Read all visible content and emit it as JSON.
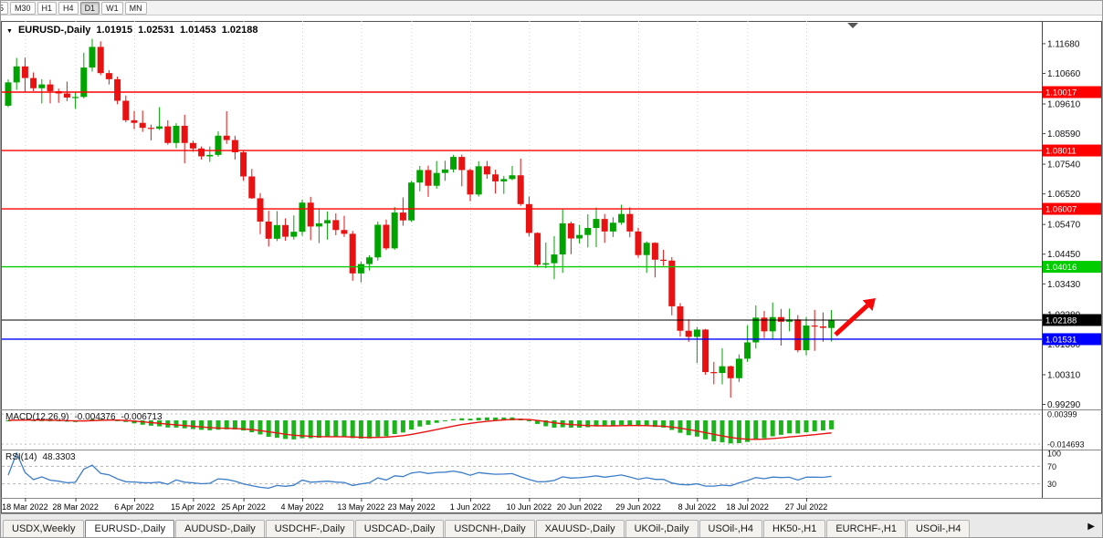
{
  "toolbar": {
    "periods": [
      {
        "label": "5",
        "active": false,
        "clipped": true
      },
      {
        "label": "M30",
        "active": false
      },
      {
        "label": "H1",
        "active": false
      },
      {
        "label": "H4",
        "active": false
      },
      {
        "label": "D1",
        "active": true
      },
      {
        "label": "W1",
        "active": false
      },
      {
        "label": "MN",
        "active": false
      }
    ]
  },
  "chart": {
    "title": {
      "symbol": "EURUSD-,Daily",
      "open": "1.01915",
      "high": "1.02531",
      "low": "1.01453",
      "close": "1.02188"
    },
    "colors": {
      "bull": "#00a300",
      "bear": "#e81212",
      "grid": "#cfcfcf",
      "axis_text": "#111111",
      "border": "#555555"
    }
  },
  "chart_data": {
    "type": "candlestick",
    "symbol": "EURUSD",
    "timeframe": "Daily",
    "y_axis_labels": [
      "1.11680",
      "1.10660",
      "1.09610",
      "1.08590",
      "1.07540",
      "1.06520",
      "1.05470",
      "1.04450",
      "1.03430",
      "1.02380",
      "1.01360",
      "1.00310",
      "0.99290"
    ],
    "x_labels": [
      {
        "text": "18 Mar 2022",
        "index": 2
      },
      {
        "text": "28 Mar 2022",
        "index": 8
      },
      {
        "text": "6 Apr 2022",
        "index": 15
      },
      {
        "text": "15 Apr 2022",
        "index": 22
      },
      {
        "text": "25 Apr 2022",
        "index": 28
      },
      {
        "text": "4 May 2022",
        "index": 35
      },
      {
        "text": "13 May 2022",
        "index": 42
      },
      {
        "text": "23 May 2022",
        "index": 48
      },
      {
        "text": "1 Jun 2022",
        "index": 55
      },
      {
        "text": "10 Jun 2022",
        "index": 62
      },
      {
        "text": "20 Jun 2022",
        "index": 68
      },
      {
        "text": "29 Jun 2022",
        "index": 75
      },
      {
        "text": "8 Jul 2022",
        "index": 82
      },
      {
        "text": "18 Jul 2022",
        "index": 88
      },
      {
        "text": "27 Jul 2022",
        "index": 95
      }
    ],
    "h_lines": [
      {
        "price": 1.10017,
        "label": "1.10017",
        "color": "#ff0000",
        "type": "resistance"
      },
      {
        "price": 1.08011,
        "label": "1.08011",
        "color": "#ff0000",
        "type": "resistance"
      },
      {
        "price": 1.06007,
        "label": "1.06007",
        "color": "#ff0000",
        "type": "resistance"
      },
      {
        "price": 1.04016,
        "label": "1.04016",
        "color": "#00cc00",
        "type": "level"
      },
      {
        "price": 1.02188,
        "label": "1.02188",
        "color": "#000000",
        "type": "current-price"
      },
      {
        "price": 1.01531,
        "label": "1.01531",
        "color": "#0000ff",
        "type": "support"
      }
    ],
    "arrow_annotation": {
      "color": "#f50808",
      "direction": "up-right"
    },
    "indicators": {
      "macd": {
        "label": "MACD(12,26,9)",
        "value_main": "-0.004376",
        "value_signal": "-0.006713",
        "axis_labels": [
          {
            "text": "0.00399",
            "value": 0.00399
          },
          {
            "text": "-0.014693",
            "value": -0.014693
          }
        ],
        "histogram_color": "#1db31d",
        "signal_color": "#e81212"
      },
      "rsi": {
        "label": "RSI(14)",
        "value": "48.3303",
        "axis_labels": [
          {
            "text": "100",
            "value": 100
          },
          {
            "text": "70",
            "value": 70
          },
          {
            "text": "30",
            "value": 30
          }
        ],
        "levels": [
          70,
          30
        ],
        "line_color": "#3b7dc8"
      }
    },
    "candles": [
      [
        1.0955,
        1.1045,
        1.095,
        1.1035
      ],
      [
        1.1035,
        1.1119,
        1.1009,
        1.109
      ],
      [
        1.109,
        1.112,
        1.1003,
        1.105
      ],
      [
        1.105,
        1.1069,
        1.1005,
        1.1015
      ],
      [
        1.1015,
        1.1046,
        1.0963,
        1.1028
      ],
      [
        1.1028,
        1.1044,
        1.0963,
        1.1005
      ],
      [
        1.1005,
        1.1014,
        1.0965,
        1.0997
      ],
      [
        1.0997,
        1.1038,
        1.0971,
        1.0983
      ],
      [
        1.0983,
        1.1,
        1.0944,
        1.0985
      ],
      [
        1.0985,
        1.1137,
        1.098,
        1.1086
      ],
      [
        1.1086,
        1.1185,
        1.1072,
        1.1157
      ],
      [
        1.1157,
        1.1176,
        1.106,
        1.1067
      ],
      [
        1.1067,
        1.1077,
        1.1028,
        1.1046
      ],
      [
        1.1046,
        1.1055,
        1.096,
        1.0972
      ],
      [
        1.0972,
        1.099,
        1.0898,
        1.0905
      ],
      [
        1.0905,
        1.0937,
        1.0874,
        1.0896
      ],
      [
        1.0896,
        1.0938,
        1.0865,
        1.0879
      ],
      [
        1.0879,
        1.089,
        1.0836,
        1.0876
      ],
      [
        1.0876,
        1.095,
        1.0872,
        1.0884
      ],
      [
        1.0884,
        1.0905,
        1.0821,
        1.0827
      ],
      [
        1.0827,
        1.0895,
        1.0809,
        1.0886
      ],
      [
        1.0886,
        1.0924,
        1.0757,
        1.0827
      ],
      [
        1.0827,
        1.0835,
        1.0797,
        1.0808
      ],
      [
        1.0808,
        1.0815,
        1.077,
        1.0781
      ],
      [
        1.0781,
        1.0815,
        1.0762,
        1.0786
      ],
      [
        1.0786,
        1.0867,
        1.078,
        1.0852
      ],
      [
        1.0852,
        1.0936,
        1.0824,
        1.0837
      ],
      [
        1.0837,
        1.0852,
        1.077,
        1.0795
      ],
      [
        1.0795,
        1.08,
        1.0697,
        1.0712
      ],
      [
        1.0712,
        1.0738,
        1.0635,
        1.0637
      ],
      [
        1.0637,
        1.0655,
        1.0514,
        1.0557
      ],
      [
        1.0557,
        1.0594,
        1.0471,
        1.0498
      ],
      [
        1.0498,
        1.0593,
        1.049,
        1.0545
      ],
      [
        1.0545,
        1.0568,
        1.0491,
        1.0505
      ],
      [
        1.0505,
        1.0578,
        1.0495,
        1.0522
      ],
      [
        1.0522,
        1.0632,
        1.0508,
        1.0622
      ],
      [
        1.0622,
        1.0642,
        1.0493,
        1.054
      ],
      [
        1.054,
        1.0599,
        1.0483,
        1.0551
      ],
      [
        1.0551,
        1.0592,
        1.0495,
        1.0562
      ],
      [
        1.0562,
        1.0585,
        1.051,
        1.0528
      ],
      [
        1.0528,
        1.0577,
        1.0504,
        1.0515
      ],
      [
        1.0515,
        1.0525,
        1.0354,
        1.0379
      ],
      [
        1.0379,
        1.042,
        1.0348,
        1.0411
      ],
      [
        1.0411,
        1.0441,
        1.0389,
        1.0434
      ],
      [
        1.0434,
        1.0557,
        1.0423,
        1.0546
      ],
      [
        1.0546,
        1.0564,
        1.0459,
        1.0465
      ],
      [
        1.0465,
        1.0607,
        1.046,
        1.0588
      ],
      [
        1.0588,
        1.064,
        1.0543,
        1.0561
      ],
      [
        1.0561,
        1.0697,
        1.0556,
        1.0691
      ],
      [
        1.0691,
        1.0748,
        1.0661,
        1.0734
      ],
      [
        1.0734,
        1.0749,
        1.0642,
        1.068
      ],
      [
        1.068,
        1.0765,
        1.067,
        1.0724
      ],
      [
        1.0724,
        1.0766,
        1.0697,
        1.0736
      ],
      [
        1.0736,
        1.0786,
        1.0726,
        1.0779
      ],
      [
        1.0779,
        1.0787,
        1.0678,
        1.0734
      ],
      [
        1.0734,
        1.0739,
        1.0627,
        1.065
      ],
      [
        1.065,
        1.0764,
        1.0643,
        1.0747
      ],
      [
        1.0747,
        1.0765,
        1.0704,
        1.0719
      ],
      [
        1.0719,
        1.0735,
        1.0653,
        1.0695
      ],
      [
        1.0695,
        1.0714,
        1.0652,
        1.0703
      ],
      [
        1.0703,
        1.0748,
        1.0699,
        1.0716
      ],
      [
        1.0716,
        1.0773,
        1.0611,
        1.0617
      ],
      [
        1.0617,
        1.0643,
        1.0506,
        1.0518
      ],
      [
        1.0518,
        1.052,
        1.0399,
        1.0409
      ],
      [
        1.0409,
        1.0485,
        1.0397,
        1.0414
      ],
      [
        1.0414,
        1.0507,
        1.0359,
        1.0444
      ],
      [
        1.0444,
        1.0601,
        1.0381,
        1.0551
      ],
      [
        1.0551,
        1.0557,
        1.0445,
        1.0499
      ],
      [
        1.0499,
        1.0546,
        1.0482,
        1.0511
      ],
      [
        1.0511,
        1.0582,
        1.0468,
        1.0535
      ],
      [
        1.0535,
        1.0605,
        1.0469,
        1.0566
      ],
      [
        1.0566,
        1.0583,
        1.0484,
        1.0523
      ],
      [
        1.0523,
        1.0572,
        1.0504,
        1.0553
      ],
      [
        1.0553,
        1.0615,
        1.0546,
        1.0583
      ],
      [
        1.0583,
        1.0606,
        1.0503,
        1.0523
      ],
      [
        1.0523,
        1.0536,
        1.0433,
        1.0442
      ],
      [
        1.0442,
        1.0489,
        1.0381,
        1.0484
      ],
      [
        1.0484,
        1.0486,
        1.0365,
        1.0426
      ],
      [
        1.0426,
        1.046,
        1.0405,
        1.0423
      ],
      [
        1.0423,
        1.0435,
        1.0235,
        1.0266
      ],
      [
        1.0266,
        1.0277,
        1.0162,
        1.0182
      ],
      [
        1.0182,
        1.0221,
        1.0144,
        1.0161
      ],
      [
        1.0161,
        1.0195,
        1.0071,
        1.0186
      ],
      [
        1.0186,
        1.0188,
        1.0031,
        1.004
      ],
      [
        1.004,
        1.0075,
        0.9998,
        1.0037
      ],
      [
        1.0037,
        1.0122,
        0.9998,
        1.006
      ],
      [
        1.006,
        1.0062,
        0.9952,
        1.0019
      ],
      [
        1.0019,
        1.0101,
        1.0006,
        1.0086
      ],
      [
        1.0086,
        1.0201,
        1.0075,
        1.0142
      ],
      [
        1.0142,
        1.0269,
        1.0121,
        1.0227
      ],
      [
        1.0227,
        1.025,
        1.0157,
        1.018
      ],
      [
        1.018,
        1.0279,
        1.0152,
        1.0229
      ],
      [
        1.0229,
        1.0257,
        1.0131,
        1.0213
      ],
      [
        1.0213,
        1.0258,
        1.018,
        1.0221
      ],
      [
        1.0221,
        1.0236,
        1.0108,
        1.0115
      ],
      [
        1.0115,
        1.0229,
        1.0097,
        1.02
      ],
      [
        1.02,
        1.0254,
        1.0113,
        1.0197
      ],
      [
        1.0197,
        1.0245,
        1.0144,
        1.0192
      ],
      [
        1.01915,
        1.02531,
        1.01453,
        1.02188
      ]
    ]
  },
  "tabs": {
    "scroll_right_icon": "▶",
    "items": [
      {
        "label": "USDX,Weekly",
        "active": false
      },
      {
        "label": "EURUSD-,Daily",
        "active": true
      },
      {
        "label": "AUDUSD-,Daily",
        "active": false
      },
      {
        "label": "USDCHF-,Daily",
        "active": false
      },
      {
        "label": "USDCAD-,Daily",
        "active": false
      },
      {
        "label": "USDCNH-,Daily",
        "active": false
      },
      {
        "label": "XAUUSD-,Daily",
        "active": false
      },
      {
        "label": "UKOil-,Daily",
        "active": false
      },
      {
        "label": "USOil-,H4",
        "active": false
      },
      {
        "label": "HK50-,H1",
        "active": false
      },
      {
        "label": "EURCHF-,H1",
        "active": false
      },
      {
        "label": "USOil-,H4",
        "active": false
      }
    ]
  }
}
